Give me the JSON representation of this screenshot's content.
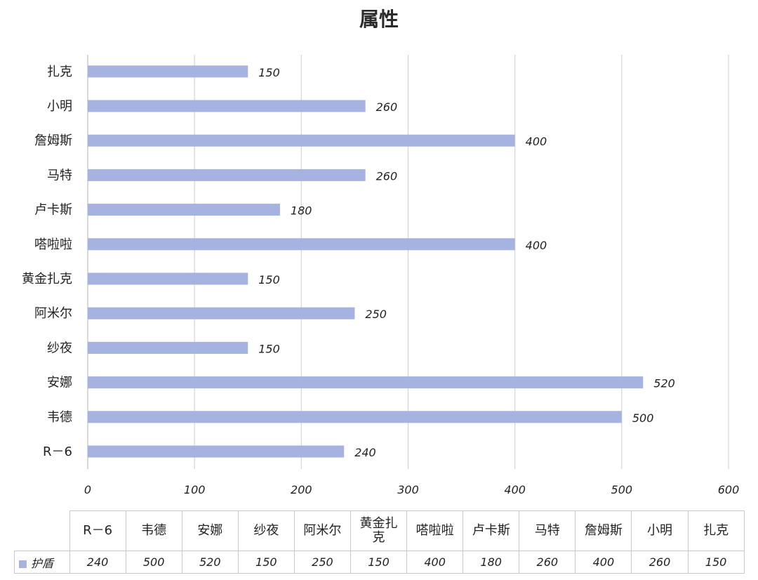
{
  "chart_data": {
    "type": "bar",
    "orientation": "horizontal",
    "title": "属性",
    "categories": [
      "R－6",
      "韦德",
      "安娜",
      "纱夜",
      "阿米尔",
      "黄金扎克",
      "嗒啦啦",
      "卢卡斯",
      "马特",
      "詹姆斯",
      "小明",
      "扎克"
    ],
    "table_categories": [
      "R－6",
      "韦德",
      "安娜",
      "纱夜",
      "阿米尔",
      "黄金扎\n克",
      "嗒啦啦",
      "卢卡斯",
      "马特",
      "詹姆斯",
      "小明",
      "扎克"
    ],
    "series": [
      {
        "name": "护盾",
        "values": [
          240,
          500,
          520,
          150,
          250,
          150,
          400,
          180,
          260,
          400,
          260,
          150
        ]
      }
    ],
    "xlim": [
      0,
      600
    ],
    "xticks": [
      0,
      100,
      200,
      300,
      400,
      500,
      600
    ],
    "grid": true,
    "data_labels": true,
    "data_table": true,
    "colors": {
      "bar": "#a6b2df",
      "grid": "#d4d4d4",
      "axis": "#bdbdbd"
    }
  }
}
